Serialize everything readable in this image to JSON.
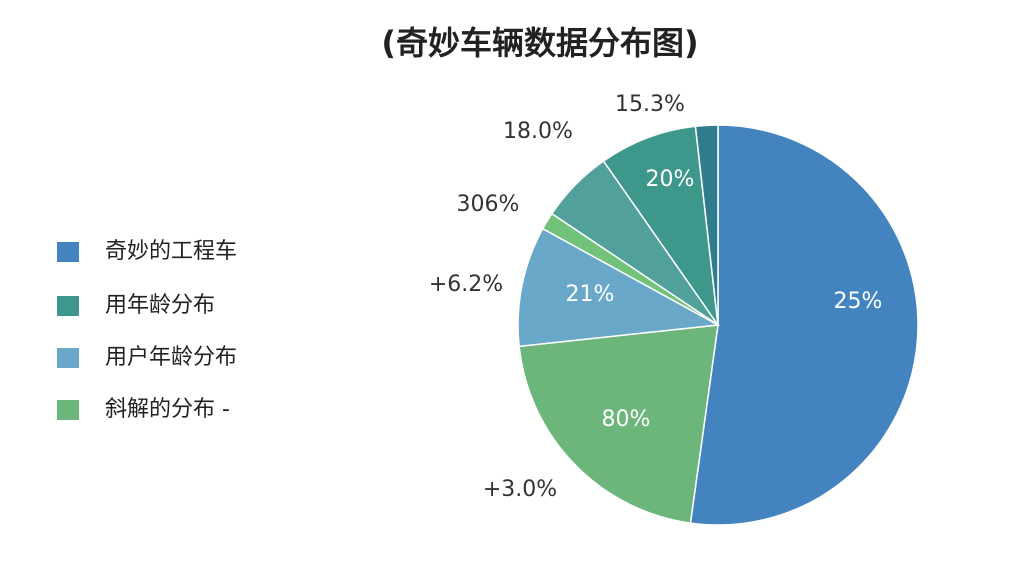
{
  "chart_data": {
    "type": "pie",
    "title": "(奇妙车辆数据分布图)",
    "values": [
      52.2,
      21.1,
      9.7,
      1.4,
      5.9,
      7.9,
      1.8
    ],
    "colors": [
      "#4383bf",
      "#6cb67c",
      "#6aa8c9",
      "#72c27a",
      "#52a09a",
      "#3d988b",
      "#2f7d8c"
    ],
    "annotations": [
      "25%",
      "80%",
      "21%",
      "20%",
      "15.3%",
      "18.0%",
      "306%",
      "+6.2%",
      "+3.0%"
    ],
    "legend": [
      {
        "label": "奇妙的工程车",
        "color": "#4383bf"
      },
      {
        "label": "用年龄分布",
        "color": "#3d988b"
      },
      {
        "label": "用户年龄分布",
        "color": "#6aa8c9"
      },
      {
        "label": "斜解的分布 -",
        "color": "#6cb67c"
      }
    ]
  }
}
